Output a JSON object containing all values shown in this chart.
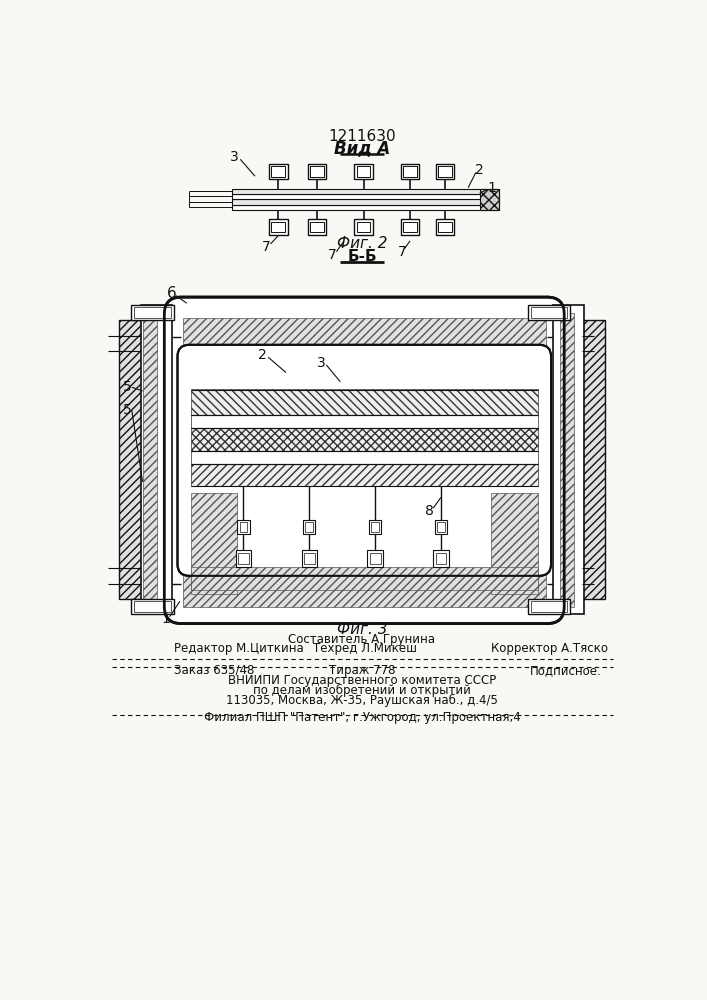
{
  "patent_number": "1211630",
  "vid_a_label": "Вид А",
  "fig2_caption": "Фиг. 2",
  "fig3_section": "Б-Б",
  "fig3_caption": "Фиг. 3",
  "footer_composer": "Составитель А.Грунина",
  "footer_editor": "Редактор М.Циткина",
  "footer_tech": "Техред Л.Микеш",
  "footer_corrector": "Корректор А.Тяско",
  "footer_order": "Заказ 635/48",
  "footer_edition": "Тираж 778",
  "footer_subscription": "Подписное.",
  "footer_org1": "ВНИИПИ Государственного комитета СССР",
  "footer_org2": "по делам изобретений и открытий",
  "footer_org3": "113035, Москва, Ж-35, Раушская наб., д.4/5",
  "footer_branch": "Филиал ПШП \"Патент\", г.Ужгород, ул.Проектная,4",
  "bg_color": "#f8f8f5",
  "lc": "#111111"
}
